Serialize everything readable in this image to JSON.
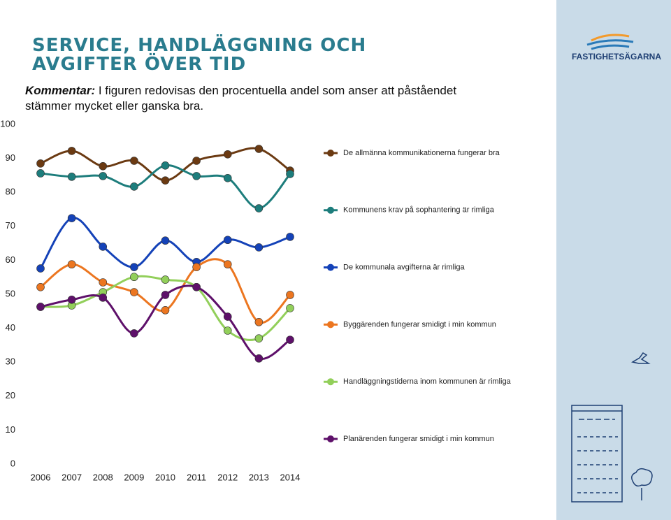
{
  "header": {
    "title": "SERVICE, HANDLÄGGNING OCH AVGIFTER ÖVER TID",
    "comment_label": "Kommentar:",
    "comment_text": " I figuren redovisas den procentuella andel som anser att påståendet stämmer mycket eller ganska bra."
  },
  "brand": "FASTIGHETSÄGARNA",
  "chart_data": {
    "type": "line",
    "smooth": true,
    "categories": [
      "2006",
      "2007",
      "2008",
      "2009",
      "2010",
      "2011",
      "2012",
      "2013",
      "2014"
    ],
    "ylim": [
      0,
      100
    ],
    "yticks": [
      0,
      10,
      20,
      30,
      40,
      50,
      60,
      70,
      80,
      90,
      100
    ],
    "grid": false,
    "legend": "right",
    "series": [
      {
        "name": "De allmänna kommunikationerna fungerar bra",
        "color": "#6b3a12",
        "values": [
          88.5,
          92.2,
          87.7,
          89.3,
          83.5,
          89.3,
          91.2,
          92.8,
          86.4
        ]
      },
      {
        "name": "Kommunens krav på sophantering är rimliga",
        "color": "#1d7d7c",
        "values": [
          85.6,
          84.6,
          84.8,
          81.7,
          87.9,
          84.8,
          84.2,
          75.3,
          85.4
        ]
      },
      {
        "name": "De kommunala avgifterna är rimliga",
        "color": "#1442b8",
        "values": [
          57.6,
          72.4,
          64.0,
          58.0,
          65.8,
          59.5,
          66.0,
          63.8,
          66.9
        ]
      },
      {
        "name": "Byggärenden fungerar smidigt i min kommun",
        "color": "#ec7620",
        "values": [
          52.1,
          58.8,
          53.5,
          50.6,
          45.3,
          58.0,
          58.8,
          41.8,
          49.8
        ]
      },
      {
        "name": "Handläggningstiderna inom kommunen är rimliga",
        "color": "#92cf5a",
        "values": [
          46.3,
          46.7,
          50.6,
          55.1,
          54.3,
          52.1,
          39.3,
          37.0,
          45.9
        ]
      },
      {
        "name": "Planärenden fungerar smidigt i min kommun",
        "color": "#5e106a",
        "values": [
          46.3,
          48.4,
          49.0,
          38.5,
          49.8,
          52.1,
          43.4,
          31.1,
          36.6
        ]
      }
    ]
  }
}
